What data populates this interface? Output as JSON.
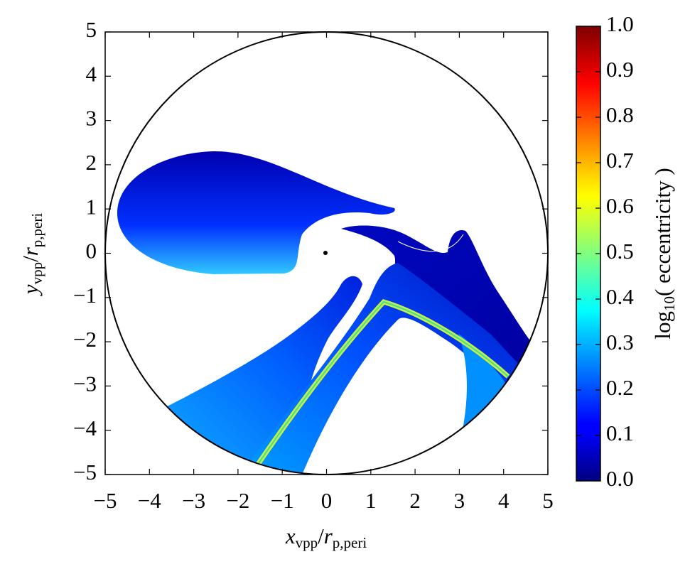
{
  "chart_data": {
    "type": "heatmap",
    "xlabel": [
      "x",
      "vpp",
      "/",
      "r",
      "p,peri"
    ],
    "ylabel": [
      "y",
      "vpp",
      "/",
      "r",
      "p,peri"
    ],
    "xlim": [
      -5,
      5
    ],
    "ylim": [
      -5,
      5
    ],
    "xticks": [
      {
        "value": -5,
        "label": "−5"
      },
      {
        "value": -4,
        "label": "−4"
      },
      {
        "value": -3,
        "label": "−3"
      },
      {
        "value": -2,
        "label": "−2"
      },
      {
        "value": -1,
        "label": "−1"
      },
      0,
      1,
      2,
      3,
      4,
      5
    ],
    "yticks": [
      {
        "value": -5,
        "label": "−5"
      },
      {
        "value": -4,
        "label": "−4"
      },
      {
        "value": -3,
        "label": "−3"
      },
      {
        "value": -2,
        "label": "−2"
      },
      {
        "value": -1,
        "label": "−1"
      },
      0,
      1,
      2,
      3,
      4,
      5
    ],
    "colorbar": {
      "label": [
        "log",
        "10",
        "( eccentricity )"
      ],
      "lim": [
        0,
        1
      ],
      "colormap": "jet",
      "ticks": [
        {
          "value": 0,
          "label": "0.0"
        },
        0.1,
        0.2,
        0.3,
        0.4,
        0.5,
        0.6,
        0.7,
        0.8,
        0.9,
        {
          "value": 1,
          "label": "1.0"
        }
      ]
    }
  }
}
